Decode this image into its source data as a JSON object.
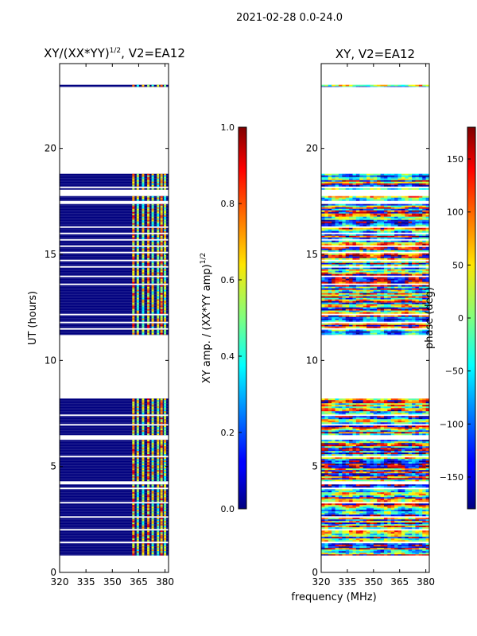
{
  "suptitle": "2021-02-28 0.0-24.0",
  "xlabel_shared": "frequency (MHz)",
  "colors": {
    "empty_row": "#ffffff",
    "low_amp": "#00007f",
    "axis": "#000000"
  },
  "chart_data": [
    {
      "type": "heatmap",
      "title_main": "XY/(XX*YY)",
      "title_exp": "1/2",
      "title_suffix": ", V2=EA12",
      "xlabel": "",
      "ylabel": "UT (hours)",
      "xlim": [
        320,
        382
      ],
      "ylim": [
        0,
        24
      ],
      "xticks": [
        320,
        335,
        350,
        365,
        380
      ],
      "xtick_labels": [
        "320",
        "335",
        "350",
        "365",
        "380"
      ],
      "yticks": [
        0,
        5,
        10,
        15,
        20
      ],
      "ytick_labels": [
        "0",
        "5",
        "10",
        "15",
        "20"
      ],
      "colormap": "jet",
      "colorbar": {
        "label_main": "XY amp. / (XX*YY amp)",
        "label_exp": "1/2",
        "range": [
          0.0,
          1.0
        ],
        "ticks": [
          0.0,
          0.2,
          0.4,
          0.6,
          0.8,
          1.0
        ],
        "tick_labels": [
          "0.0",
          "0.2",
          "0.4",
          "0.6",
          "0.8",
          "1.0"
        ]
      },
      "data_blocks_hours": [
        [
          0.8,
          8.2
        ],
        [
          11.2,
          18.8
        ],
        [
          22.9,
          23.0
        ]
      ],
      "flagged_below_MHz": 362,
      "active_channels_MHz": [
        362,
        364.5,
        367.5,
        370.5,
        373,
        376,
        378,
        380
      ]
    },
    {
      "type": "heatmap",
      "title": "XY, V2=EA12",
      "xlabel": "",
      "ylabel": "",
      "xlim": [
        320,
        382
      ],
      "ylim": [
        0,
        24
      ],
      "xticks": [
        320,
        335,
        350,
        365,
        380
      ],
      "xtick_labels": [
        "320",
        "335",
        "350",
        "365",
        "380"
      ],
      "yticks": [
        0,
        5,
        10,
        15,
        20
      ],
      "ytick_labels": [
        "0",
        "5",
        "10",
        "15",
        "20"
      ],
      "colormap": "jet",
      "colorbar": {
        "label": "phase (deg)",
        "range": [
          -180,
          180
        ],
        "ticks": [
          150,
          100,
          50,
          0,
          -50,
          -100,
          -150
        ],
        "tick_labels": [
          "150",
          "100",
          "50",
          "0",
          "−50",
          "−100",
          "−150"
        ]
      },
      "data_blocks_hours": [
        [
          0.8,
          8.2
        ],
        [
          11.2,
          18.8
        ],
        [
          22.9,
          23.0
        ]
      ]
    }
  ]
}
